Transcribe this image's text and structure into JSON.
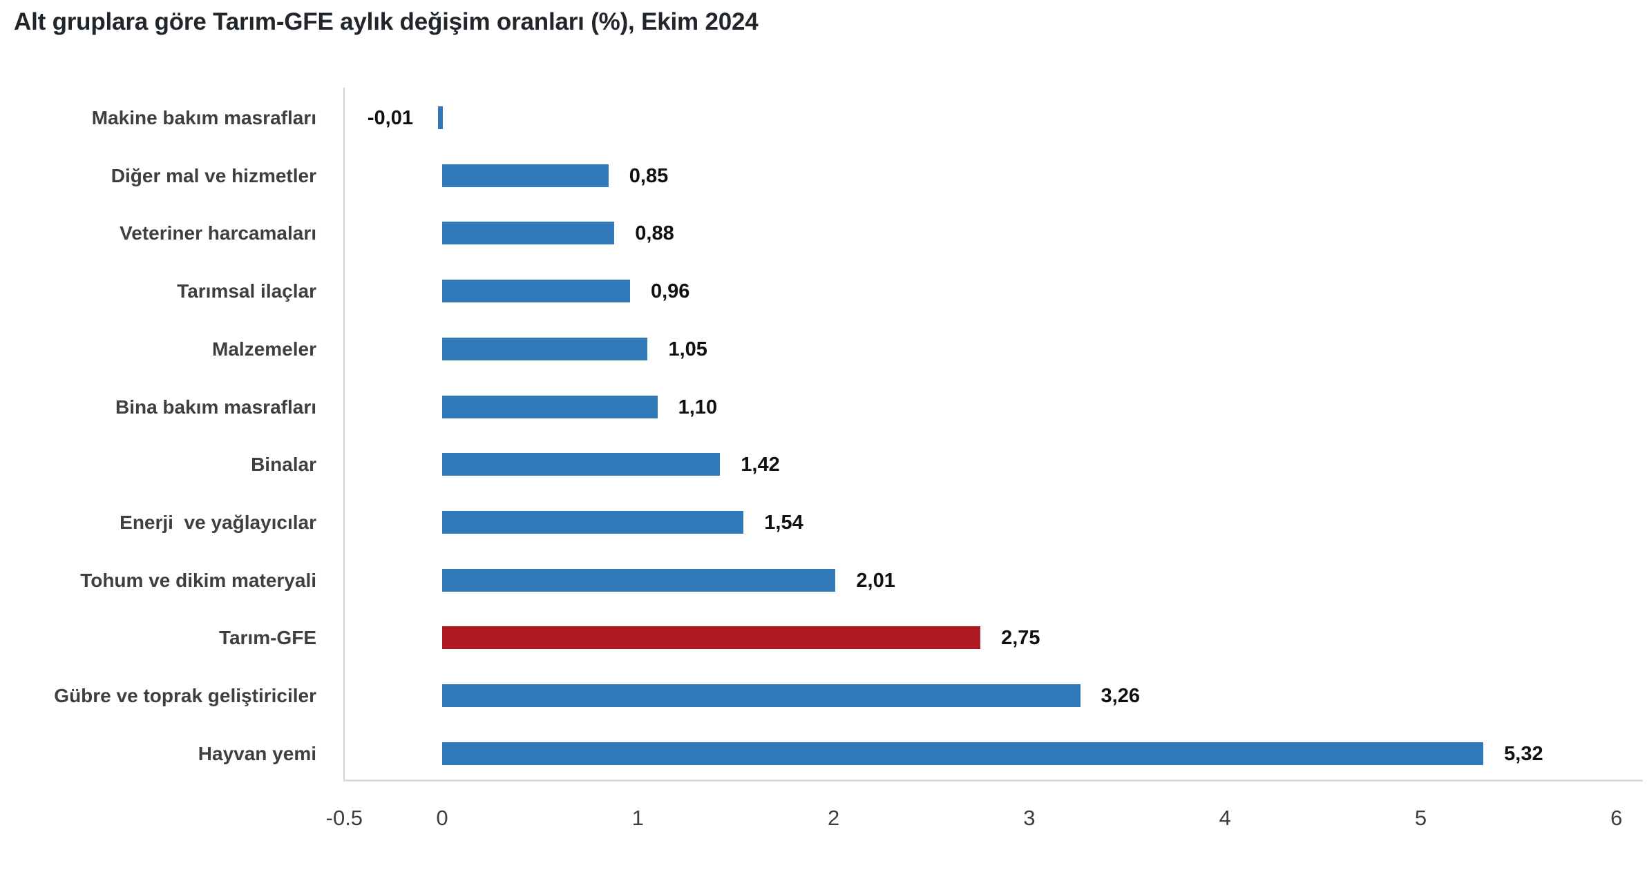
{
  "title": "Alt gruplara göre Tarım-GFE aylık değişim oranları (%), Ekim 2024",
  "colors": {
    "bar_blue": "#3078b7",
    "bar_highlight_red": "#b01a23",
    "axis_line": "#d5d8da",
    "title_text": "#21262c",
    "category_text": "#3f3f3f",
    "value_text": "#101010",
    "tick_text": "#3d3d3d"
  },
  "chart_data": {
    "type": "bar",
    "orientation": "horizontal",
    "title": "Alt gruplara göre Tarım-GFE aylık değişim oranları (%), Ekim 2024",
    "categories": [
      "Makine bakım masrafları",
      "Diğer mal ve hizmetler",
      "Veteriner harcamaları",
      "Tarımsal ilaçlar",
      "Malzemeler",
      "Bina bakım masrafları",
      "Binalar",
      "Enerji  ve yağlayıcılar",
      "Tohum ve dikim materyali",
      "Tarım-GFE",
      "Gübre ve toprak geliştiriciler",
      "Hayvan yemi"
    ],
    "values": [
      -0.01,
      0.85,
      0.88,
      0.96,
      1.05,
      1.1,
      1.42,
      1.54,
      2.01,
      2.75,
      3.26,
      5.32
    ],
    "value_labels": [
      "-0,01",
      "0,85",
      "0,88",
      "0,96",
      "1,05",
      "1,10",
      "1,42",
      "1,54",
      "2,01",
      "2,75",
      "3,26",
      "5,32"
    ],
    "highlight_index": 9,
    "highlight_category": "Tarım-GFE",
    "xlim": [
      -0.5,
      6
    ],
    "x_ticks": [
      "-0.5",
      "0",
      "1",
      "2",
      "3",
      "4",
      "5",
      "6"
    ],
    "x_tick_values": [
      -0.5,
      0,
      1,
      2,
      3,
      4,
      5,
      6
    ],
    "grid": false,
    "legend": null,
    "xlabel": "",
    "ylabel": ""
  }
}
